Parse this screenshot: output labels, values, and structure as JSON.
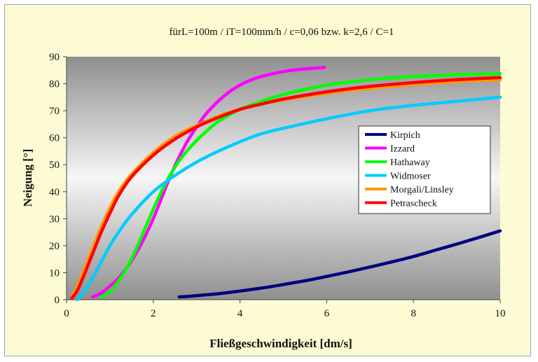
{
  "chart_data": {
    "type": "line",
    "title": "fürL=100m / iT=100mm/h / c=0,06 bzw. k=2,6 / C=1",
    "xlabel": "Fließgeschwindigkeit [dm/s]",
    "ylabel": "Neigung [°]",
    "xlim": [
      0,
      10
    ],
    "ylim": [
      0,
      90
    ],
    "xticks": [
      0,
      2,
      4,
      6,
      8,
      10
    ],
    "yticks": [
      0,
      10,
      20,
      30,
      40,
      50,
      60,
      70,
      80,
      90
    ],
    "grid": false,
    "legend_position": "right",
    "series": [
      {
        "name": "Kirpich",
        "color": "#000080",
        "x": [
          2.6,
          3,
          3.5,
          4,
          4.5,
          5,
          5.5,
          6,
          6.5,
          7,
          7.5,
          8,
          8.5,
          9,
          9.5,
          10
        ],
        "y": [
          1,
          1.5,
          2.2,
          3.2,
          4.3,
          5.6,
          7,
          8.6,
          10.3,
          12.1,
          14,
          16,
          18.3,
          20.6,
          23,
          25.5
        ]
      },
      {
        "name": "Izzard",
        "color": "#ff00ff",
        "x": [
          0.6,
          0.8,
          1,
          1.2,
          1.4,
          1.6,
          1.8,
          2,
          2.2,
          2.4,
          2.6,
          2.8,
          3,
          3.2,
          3.4,
          3.6,
          3.8,
          4,
          4.2,
          4.5,
          5,
          5.5,
          5.95
        ],
        "y": [
          1,
          2.5,
          5,
          8,
          12,
          17,
          23,
          30,
          38,
          46,
          53,
          59,
          64,
          68.5,
          72,
          75,
          77.5,
          79.5,
          81,
          82.7,
          84.5,
          85.5,
          86
        ]
      },
      {
        "name": "Hathaway",
        "color": "#00ff00",
        "x": [
          0.8,
          1,
          1.2,
          1.4,
          1.6,
          1.8,
          2,
          2.2,
          2.4,
          2.6,
          2.8,
          3,
          3.2,
          3.5,
          4,
          4.5,
          5,
          6,
          7,
          8,
          9,
          10
        ],
        "y": [
          1,
          3,
          7,
          12,
          18.5,
          26,
          33.5,
          40.5,
          46.5,
          51.5,
          55.5,
          59,
          62,
          66,
          70.5,
          73.5,
          76,
          79.5,
          81.5,
          82.7,
          83.3,
          83.7
        ]
      },
      {
        "name": "Widmoser",
        "color": "#00ccff",
        "x": [
          0.25,
          0.4,
          0.6,
          0.8,
          1,
          1.2,
          1.5,
          2,
          2.5,
          3,
          3.5,
          4,
          4.5,
          5,
          6,
          7,
          8,
          9,
          10
        ],
        "y": [
          0,
          3,
          8,
          14,
          20,
          25,
          31.5,
          40,
          46,
          51,
          55,
          58.5,
          61.5,
          63.5,
          67,
          70,
          72,
          73.5,
          75
        ]
      },
      {
        "name": "Morgali/Linsley",
        "color": "#ff9900",
        "x": [
          0.12,
          0.25,
          0.4,
          0.6,
          0.8,
          1,
          1.2,
          1.5,
          2,
          2.5,
          3,
          3.5,
          4,
          4.5,
          5,
          6,
          7,
          8,
          9,
          10
        ],
        "y": [
          1,
          5,
          11,
          19,
          27,
          34,
          40,
          46.5,
          54.5,
          60.5,
          64.5,
          68,
          70.5,
          72.5,
          74,
          76.5,
          78.3,
          79.7,
          80.8,
          81.5
        ]
      },
      {
        "name": "Petrascheck",
        "color": "#ff0000",
        "x": [
          0.12,
          0.25,
          0.4,
          0.6,
          0.8,
          1,
          1.2,
          1.5,
          2,
          2.5,
          3,
          3.5,
          4,
          4.5,
          5,
          6,
          7,
          8,
          9,
          10
        ],
        "y": [
          0.5,
          3.5,
          9,
          17,
          25,
          32,
          38.5,
          45.5,
          53.5,
          59.5,
          64,
          67.5,
          70.5,
          72.5,
          74.3,
          77,
          79,
          80.4,
          81.5,
          82.3
        ]
      }
    ]
  }
}
